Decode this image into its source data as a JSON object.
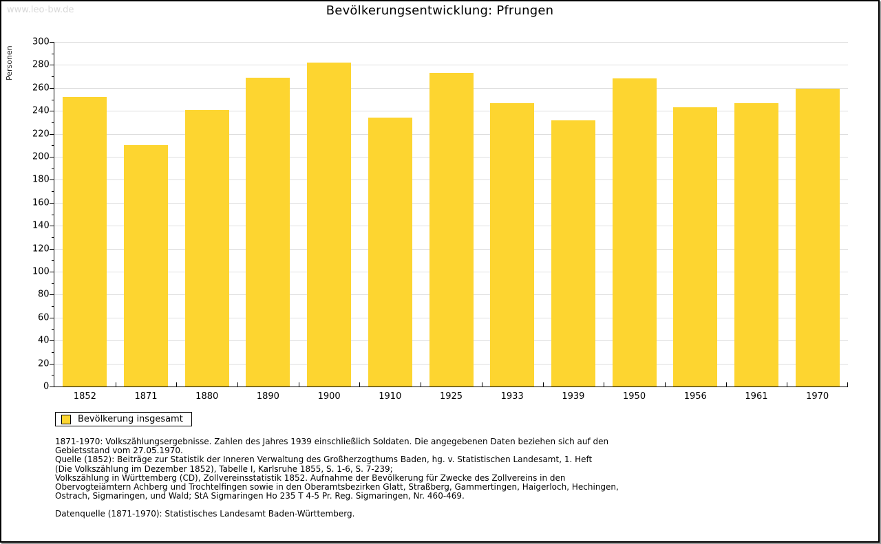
{
  "watermark": "www.leo-bw.de",
  "chart_data": {
    "type": "bar",
    "title": "Bevölkerungsentwicklung: Pfrungen",
    "xlabel": "",
    "ylabel": "Personen",
    "ylim": [
      0,
      300
    ],
    "ytick_step": 20,
    "ytick_minor_step": 10,
    "grid": "horizontal",
    "legend_position": "bottom-left",
    "categories": [
      "1852",
      "1871",
      "1880",
      "1890",
      "1900",
      "1910",
      "1925",
      "1933",
      "1939",
      "1950",
      "1956",
      "1961",
      "1970"
    ],
    "series": [
      {
        "name": "Bevölkerung insgesamt",
        "values": [
          252,
          210,
          241,
          269,
          282,
          234,
          273,
          247,
          232,
          268,
          243,
          247,
          259
        ]
      }
    ],
    "bar_color": "#fdd530",
    "gridline_color": "#dedede"
  },
  "legend": {
    "label": "Bevölkerung insgesamt",
    "swatch_color": "#fdd530"
  },
  "footnotes": {
    "lines": [
      "1871-1970: Volkszählungsergebnisse. Zahlen des Jahres 1939 einschließlich Soldaten. Die angegebenen Daten beziehen sich auf den",
      "Gebietsstand vom 27.05.1970.",
      "Quelle (1852): Beiträge zur Statistik der Inneren Verwaltung des Großherzogthums Baden, hg. v. Statistischen Landesamt, 1. Heft",
      "(Die Volkszählung im Dezember 1852), Tabelle I, Karlsruhe 1855, S. 1-6, S. 7-239;",
      "Volkszählung in Württemberg (CD), Zollvereinsstatistik 1852. Aufnahme der Bevölkerung für Zwecke des Zollvereins in den",
      "Obervogteiämtern Achberg und Trochtelfingen sowie in den Oberamtsbezirken Glatt, Straßberg, Gammertingen, Haigerloch, Hechingen,",
      "Ostrach, Sigmaringen, und Wald; StA Sigmaringen Ho 235 T 4-5 Pr. Reg. Sigmaringen, Nr. 460-469."
    ],
    "datasource": "Datenquelle (1871-1970): Statistisches Landesamt Baden-Württemberg."
  }
}
